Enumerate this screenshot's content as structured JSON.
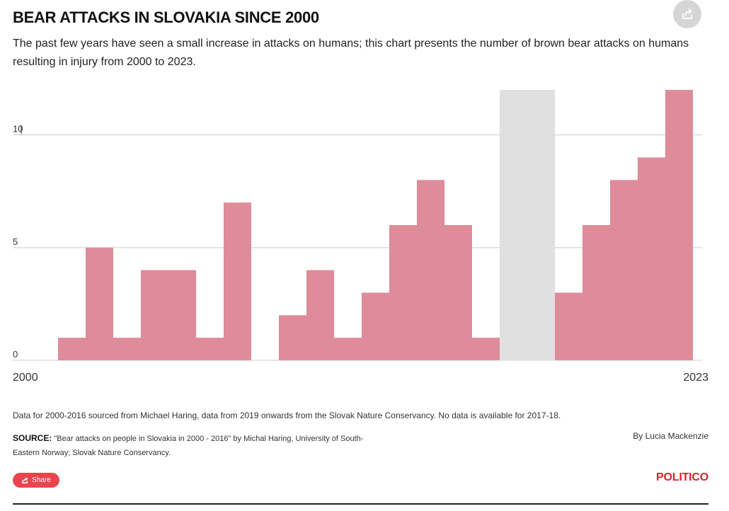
{
  "header": {
    "title": "BEAR ATTACKS IN SLOVAKIA SINCE 2000",
    "subtitle": "The past few years have seen a small increase in attacks on humans; this chart presents the number of brown bear attacks on humans resulting in injury from 2000 to 2023."
  },
  "footer": {
    "note": "Data for 2000-2016 sourced from Michael Haring, data from 2019 onwards from the Slovak Nature Conservancy. No data is available for 2017-18.",
    "source_label": "SOURCE:",
    "source_text": "\"Bear attacks on people in Slovakia in 2000 - 2016\" by Michal Haring, University of South-Eastern Norway; Slovak Nature Conservancy.",
    "byline": "By Lucia Mackenzie",
    "share_label": "Share",
    "logo": "POLITICO"
  },
  "colors": {
    "bar": "#de8b9a",
    "no_data": "#e0e0e0",
    "grid": "#cccccc",
    "accent": "#e8454f",
    "logo": "#d8222a"
  },
  "icons": {
    "share_circle": "share-icon",
    "share_button": "share-icon"
  },
  "chart_data": {
    "type": "bar",
    "x": [
      2000,
      2001,
      2002,
      2003,
      2004,
      2005,
      2006,
      2007,
      2008,
      2009,
      2010,
      2011,
      2012,
      2013,
      2014,
      2015,
      2016,
      2017,
      2018,
      2019,
      2020,
      2021,
      2022,
      2023
    ],
    "values": [
      0,
      1,
      5,
      1,
      4,
      4,
      1,
      7,
      0,
      2,
      4,
      1,
      3,
      6,
      8,
      6,
      1,
      null,
      null,
      3,
      6,
      8,
      9,
      12
    ],
    "no_data_years": [
      2017,
      2018
    ],
    "x_tick_labels": [
      "2000",
      "2023"
    ],
    "y_ticks": [
      0,
      5,
      10
    ],
    "ylim": [
      0,
      12
    ],
    "grid": true,
    "title": "BEAR ATTACKS IN SLOVAKIA SINCE 2000"
  }
}
